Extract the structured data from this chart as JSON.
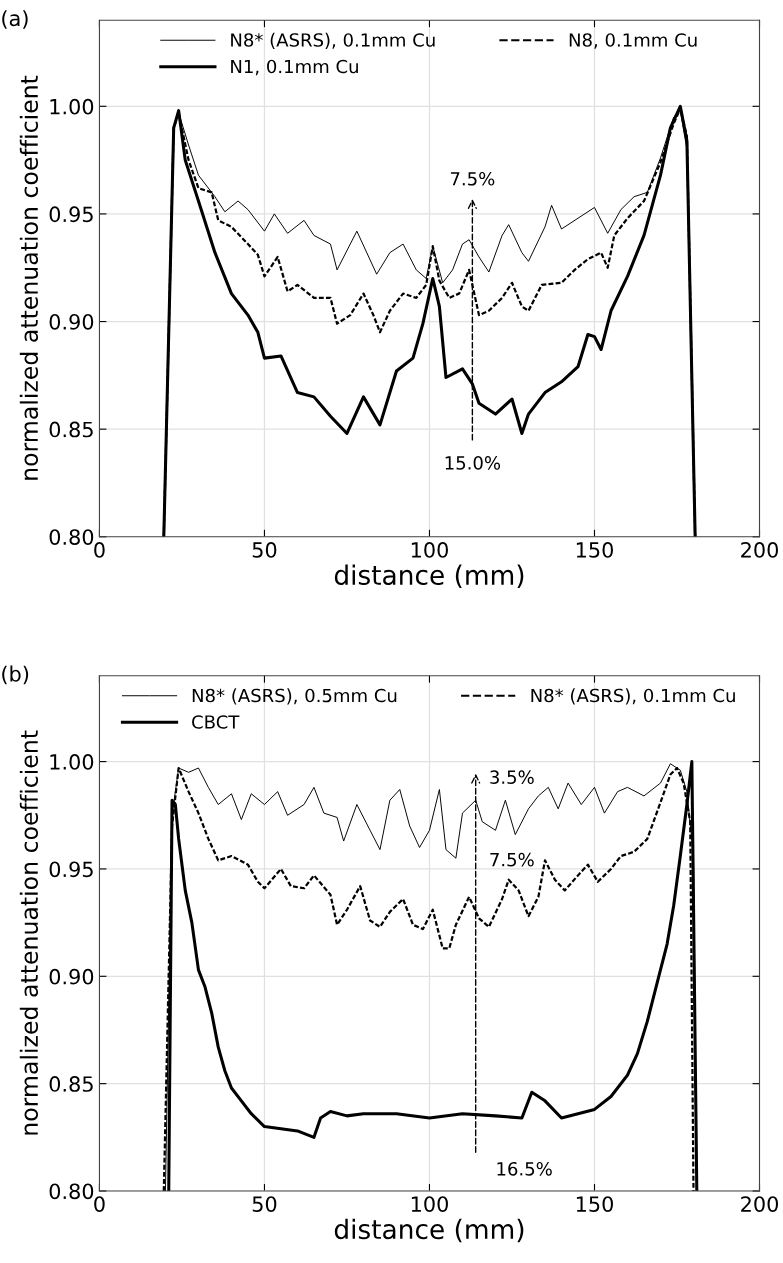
{
  "chart_data": [
    {
      "type": "line",
      "title": "(a)",
      "xlabel": "distance (mm)",
      "ylabel": "normalized attenuation coefficient",
      "xlim": [
        0,
        200
      ],
      "ylim": [
        0.8,
        1.04
      ],
      "xticks": [
        0,
        50,
        100,
        150,
        200
      ],
      "yticks": [
        {
          "value": 0.8,
          "label": "0.80"
        },
        {
          "value": 0.85,
          "label": "0.85"
        },
        {
          "value": 0.9,
          "label": "0.90"
        },
        {
          "value": 0.95,
          "label": "0.95"
        },
        {
          "value": 1.0,
          "label": "1.00"
        }
      ],
      "grid": true,
      "legend": "top",
      "marker": "none",
      "annotations": [
        "7.5%",
        "15.0%"
      ],
      "series": [
        {
          "name": "N8* (ASRS), 0.1mm Cu",
          "color": "#000000",
          "line_style": "solid",
          "x": [
            19.5,
            22.5,
            24,
            27,
            30,
            35,
            38,
            42,
            45,
            50,
            53,
            57,
            62,
            65,
            70,
            72,
            78,
            84,
            88,
            92,
            96,
            99,
            101,
            104,
            107,
            110,
            112,
            115,
            118,
            122,
            124,
            128,
            130,
            135,
            137,
            140,
            145,
            150,
            154,
            158,
            162,
            166,
            170,
            174,
            176,
            178,
            180.5
          ],
          "values": [
            0.8,
            0.99,
            0.997,
            0.982,
            0.968,
            0.958,
            0.951,
            0.956,
            0.952,
            0.942,
            0.95,
            0.941,
            0.947,
            0.94,
            0.936,
            0.924,
            0.942,
            0.922,
            0.932,
            0.936,
            0.924,
            0.92,
            0.935,
            0.918,
            0.924,
            0.936,
            0.938,
            0.93,
            0.923,
            0.94,
            0.945,
            0.932,
            0.928,
            0.944,
            0.954,
            0.943,
            0.948,
            0.953,
            0.941,
            0.952,
            0.958,
            0.96,
            0.976,
            0.995,
            0.998,
            0.98,
            0.8
          ]
        },
        {
          "name": "N8, 0.1mm Cu",
          "color": "#000000",
          "line_style": "dashed",
          "x": [
            19.5,
            22.5,
            24,
            27,
            30,
            34,
            36,
            40,
            45,
            48,
            50,
            54,
            57,
            60,
            65,
            70,
            72,
            76,
            80,
            83,
            85,
            88,
            92,
            96,
            99,
            101,
            103,
            106,
            109,
            112,
            115,
            118,
            122,
            125,
            128,
            130,
            134,
            140,
            144,
            148,
            152,
            154,
            156,
            160,
            165,
            170,
            174,
            176,
            178,
            180.5
          ],
          "values": [
            0.8,
            0.99,
            0.997,
            0.975,
            0.962,
            0.96,
            0.947,
            0.944,
            0.936,
            0.931,
            0.921,
            0.93,
            0.914,
            0.917,
            0.911,
            0.911,
            0.899,
            0.903,
            0.913,
            0.903,
            0.895,
            0.905,
            0.913,
            0.911,
            0.917,
            0.935,
            0.919,
            0.911,
            0.913,
            0.924,
            0.903,
            0.905,
            0.911,
            0.918,
            0.907,
            0.905,
            0.917,
            0.918,
            0.924,
            0.929,
            0.932,
            0.925,
            0.94,
            0.948,
            0.956,
            0.974,
            0.992,
            0.999,
            0.986,
            0.8
          ]
        },
        {
          "name": "N1, 0.1mm Cu",
          "color": "#000000",
          "line_style": "solid",
          "x": [
            19.5,
            22.5,
            24,
            26,
            30,
            35,
            40,
            45,
            48,
            50,
            55,
            60,
            65,
            70,
            75,
            80,
            85,
            90,
            95,
            98,
            101,
            103,
            105,
            110,
            113,
            115,
            120,
            125,
            128,
            130,
            135,
            140,
            145,
            148,
            150,
            152,
            155,
            160,
            165,
            170,
            173,
            176,
            178,
            180.5
          ],
          "values": [
            0.8,
            0.99,
            0.998,
            0.975,
            0.956,
            0.932,
            0.913,
            0.903,
            0.895,
            0.883,
            0.884,
            0.867,
            0.865,
            0.856,
            0.848,
            0.865,
            0.852,
            0.877,
            0.883,
            0.899,
            0.92,
            0.907,
            0.874,
            0.878,
            0.871,
            0.862,
            0.857,
            0.864,
            0.848,
            0.857,
            0.867,
            0.872,
            0.879,
            0.894,
            0.893,
            0.887,
            0.905,
            0.921,
            0.94,
            0.968,
            0.99,
            1.0,
            0.984,
            0.8
          ]
        }
      ]
    },
    {
      "type": "line",
      "title": "(b)",
      "xlabel": "distance (mm)",
      "ylabel": "normalized attenuation coefficient",
      "xlim": [
        0,
        200
      ],
      "ylim": [
        0.8,
        1.04
      ],
      "xticks": [
        0,
        50,
        100,
        150,
        200
      ],
      "yticks": [
        {
          "value": 0.8,
          "label": "0.80"
        },
        {
          "value": 0.85,
          "label": "0.85"
        },
        {
          "value": 0.9,
          "label": "0.90"
        },
        {
          "value": 0.95,
          "label": "0.95"
        },
        {
          "value": 1.0,
          "label": "1.00"
        }
      ],
      "grid": true,
      "legend": "top",
      "marker": "none",
      "annotations": [
        "3.5%",
        "7.5%",
        "16.5%"
      ],
      "series": [
        {
          "name": "N8* (ASRS), 0.5mm Cu",
          "color": "#000000",
          "line_style": "solid",
          "x": [
            20,
            22,
            24,
            27,
            30,
            33,
            36,
            40,
            43,
            46,
            50,
            54,
            57,
            62,
            65,
            68,
            72,
            74,
            78,
            82,
            85,
            88,
            91,
            94,
            97,
            100,
            103,
            105,
            108,
            110,
            114,
            116,
            120,
            123,
            126,
            130,
            133,
            136,
            139,
            142,
            146,
            150,
            153,
            157,
            160,
            165,
            170,
            173,
            176,
            178,
            180,
            181
          ],
          "values": [
            0.8,
            0.975,
            0.997,
            0.995,
            0.997,
            0.988,
            0.98,
            0.985,
            0.973,
            0.985,
            0.98,
            0.986,
            0.975,
            0.98,
            0.988,
            0.976,
            0.974,
            0.963,
            0.98,
            0.968,
            0.959,
            0.982,
            0.987,
            0.97,
            0.96,
            0.968,
            0.987,
            0.959,
            0.955,
            0.976,
            0.982,
            0.972,
            0.968,
            0.982,
            0.966,
            0.978,
            0.984,
            0.988,
            0.978,
            0.99,
            0.98,
            0.988,
            0.976,
            0.986,
            0.988,
            0.984,
            0.99,
            0.999,
            0.996,
            0.986,
            0.956,
            0.8
          ]
        },
        {
          "name": "N8* (ASRS), 0.1mm Cu",
          "color": "#000000",
          "line_style": "dashed",
          "x": [
            19.5,
            22,
            24,
            27,
            30,
            33,
            36,
            40,
            45,
            48,
            50,
            55,
            58,
            62,
            65,
            70,
            72,
            75,
            79,
            82,
            85,
            88,
            92,
            95,
            98,
            101,
            104,
            106,
            108,
            112,
            115,
            118,
            122,
            124,
            127,
            130,
            133,
            135,
            138,
            141,
            145,
            148,
            151,
            155,
            158,
            162,
            166,
            170,
            173,
            175,
            177,
            179,
            180
          ],
          "values": [
            0.8,
            0.97,
            0.997,
            0.986,
            0.976,
            0.964,
            0.954,
            0.956,
            0.952,
            0.944,
            0.941,
            0.95,
            0.942,
            0.941,
            0.947,
            0.938,
            0.924,
            0.931,
            0.942,
            0.926,
            0.923,
            0.93,
            0.936,
            0.924,
            0.922,
            0.931,
            0.913,
            0.913,
            0.924,
            0.937,
            0.927,
            0.923,
            0.936,
            0.945,
            0.94,
            0.928,
            0.937,
            0.954,
            0.945,
            0.94,
            0.947,
            0.952,
            0.944,
            0.95,
            0.956,
            0.958,
            0.964,
            0.981,
            0.994,
            0.997,
            0.99,
            0.972,
            0.8
          ]
        },
        {
          "name": "CBCT",
          "color": "#000000",
          "line_style": "solid",
          "x": [
            21,
            22,
            23,
            24,
            26,
            28,
            30,
            32,
            34,
            36,
            38,
            40,
            43,
            46,
            50,
            55,
            60,
            65,
            67,
            70,
            75,
            80,
            90,
            100,
            110,
            120,
            128,
            131,
            135,
            140,
            145,
            150,
            155,
            160,
            163,
            166,
            169,
            172,
            174,
            176,
            178,
            179.5,
            181
          ],
          "values": [
            0.8,
            0.982,
            0.98,
            0.964,
            0.94,
            0.925,
            0.903,
            0.895,
            0.883,
            0.867,
            0.856,
            0.848,
            0.842,
            0.836,
            0.83,
            0.829,
            0.828,
            0.825,
            0.834,
            0.837,
            0.835,
            0.836,
            0.836,
            0.834,
            0.836,
            0.835,
            0.834,
            0.846,
            0.842,
            0.834,
            0.836,
            0.838,
            0.844,
            0.854,
            0.864,
            0.879,
            0.897,
            0.915,
            0.933,
            0.956,
            0.98,
            1.0,
            0.8
          ]
        }
      ]
    }
  ]
}
